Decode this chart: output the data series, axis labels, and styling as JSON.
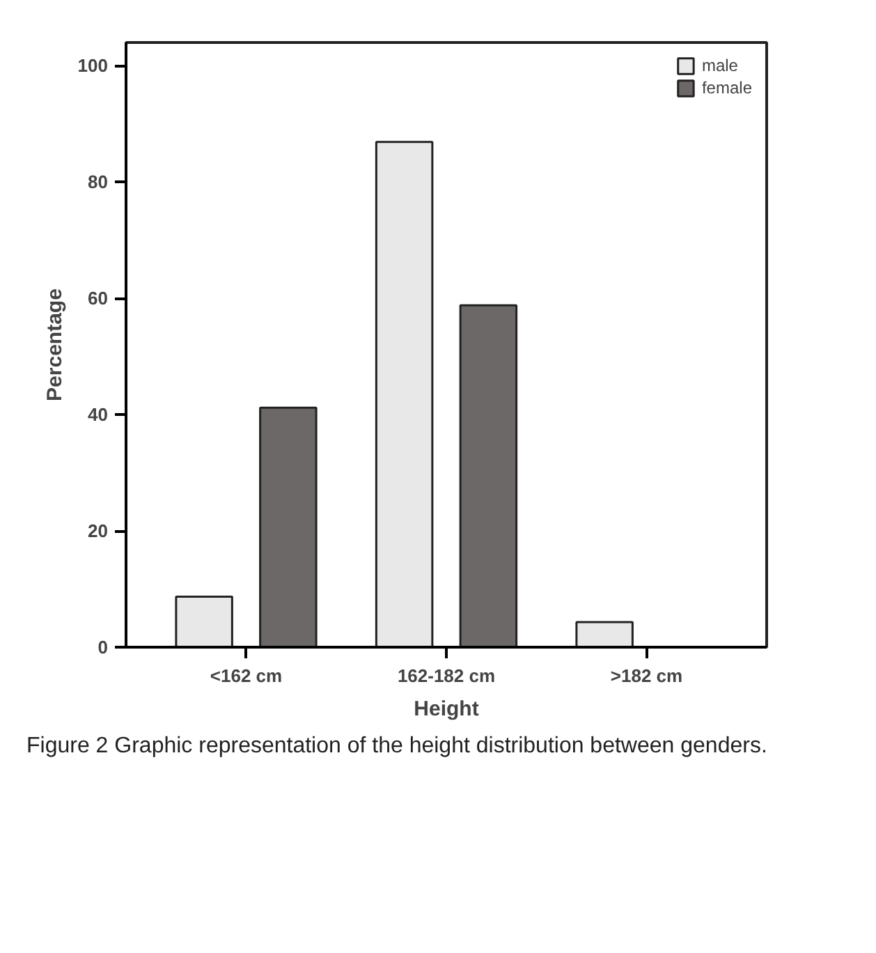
{
  "chart_data": {
    "type": "bar",
    "xlabel": "Height",
    "ylabel": "Percentage",
    "categories": [
      "<162 cm",
      "162-182 cm",
      ">182 cm"
    ],
    "series": [
      {
        "name": "male",
        "color": "#e8e8e8",
        "values": [
          8.7,
          86.9,
          4.3
        ]
      },
      {
        "name": "female",
        "color": "#6b6867",
        "values": [
          41.2,
          58.8,
          null
        ]
      }
    ],
    "ylim": [
      0,
      104
    ],
    "yticks": [
      0,
      20,
      40,
      60,
      80,
      100
    ],
    "grid": false,
    "legend": "top right",
    "annotations": [
      "Figure 2 Graphic representation of the height distribution between genders."
    ]
  }
}
